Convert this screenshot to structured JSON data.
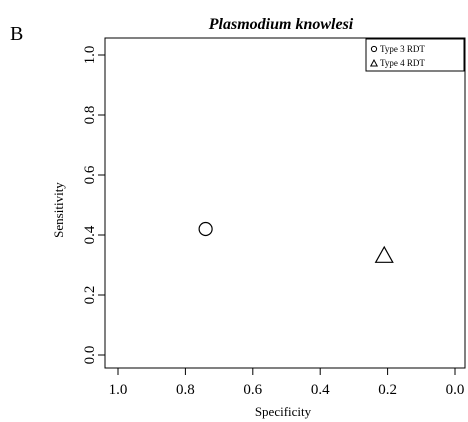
{
  "panel_label": "B",
  "chart_data": {
    "type": "scatter",
    "title": "Plasmodium knowlesi",
    "xlabel": "Specificity",
    "ylabel": "Sensitivity",
    "xlim": [
      1.0,
      0.0
    ],
    "ylim": [
      0.0,
      1.0
    ],
    "x_reversed": true,
    "xticks": [
      "1.0",
      "0.8",
      "0.6",
      "0.4",
      "0.2",
      "0.0"
    ],
    "yticks": [
      "0.0",
      "0.2",
      "0.4",
      "0.6",
      "0.8",
      "1.0"
    ],
    "grid": false,
    "legend_position": "top-right",
    "series": [
      {
        "name": "Type 3 RDT",
        "marker": "circle",
        "points": [
          {
            "x": 0.74,
            "y": 0.42
          }
        ]
      },
      {
        "name": "Type 4 RDT",
        "marker": "triangle",
        "points": [
          {
            "x": 0.21,
            "y": 0.33
          }
        ]
      }
    ]
  }
}
